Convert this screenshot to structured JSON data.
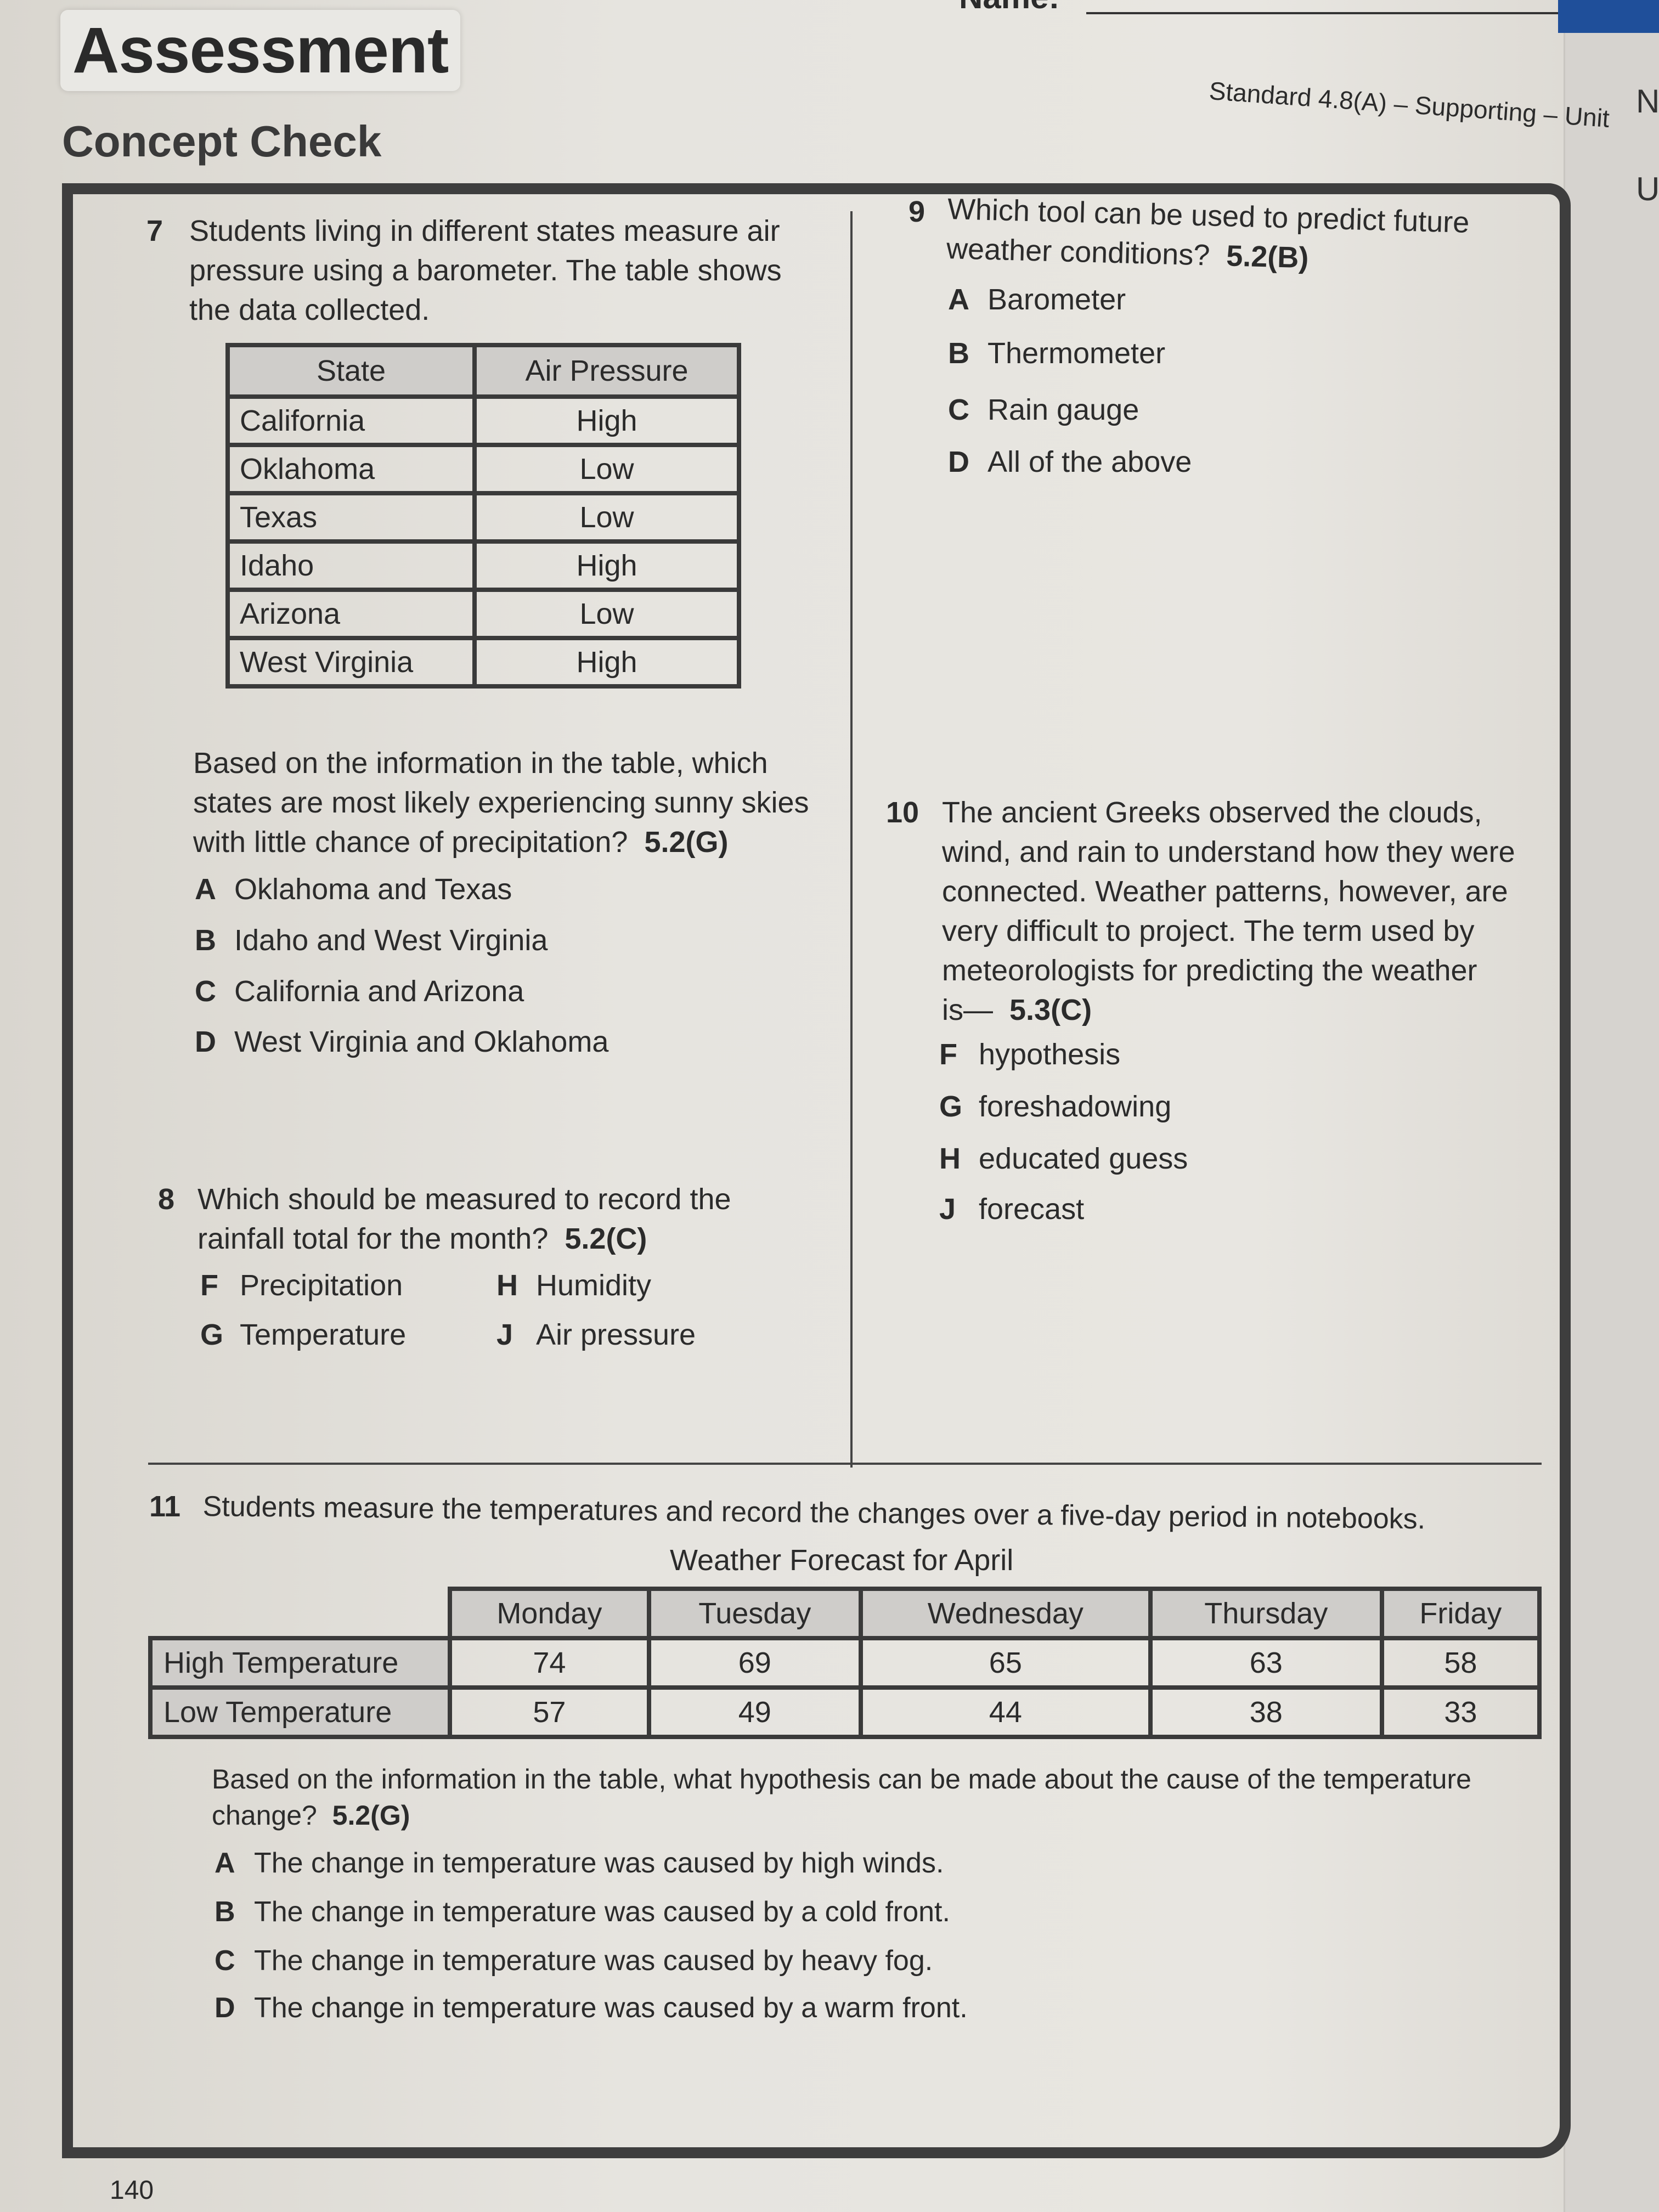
{
  "header": {
    "title": "Assessment",
    "subtitle": "Concept Check",
    "name_label": "Name:",
    "standard": "Standard 4.8(A) – Supporting – Unit"
  },
  "q7": {
    "number": "7",
    "lines": [
      "Students living in different states measure air",
      "pressure using a barometer. The table shows",
      "the data collected."
    ],
    "table": {
      "headers": [
        "State",
        "Air Pressure"
      ],
      "rows": [
        [
          "California",
          "High"
        ],
        [
          "Oklahoma",
          "Low"
        ],
        [
          "Texas",
          "Low"
        ],
        [
          "Idaho",
          "High"
        ],
        [
          "Arizona",
          "Low"
        ],
        [
          "West Virginia",
          "High"
        ]
      ]
    },
    "prompt": [
      "Based on the information in the table, which",
      "states are most likely experiencing sunny skies",
      "with little chance of precipitation?"
    ],
    "standard": "5.2(G)",
    "options": [
      {
        "letter": "A",
        "text": "Oklahoma and Texas"
      },
      {
        "letter": "B",
        "text": "Idaho and West Virginia"
      },
      {
        "letter": "C",
        "text": "California and Arizona"
      },
      {
        "letter": "D",
        "text": "West Virginia and Oklahoma"
      }
    ]
  },
  "q8": {
    "number": "8",
    "lines": [
      "Which should be measured to record the",
      "rainfall total for the month?"
    ],
    "standard": "5.2(C)",
    "options": [
      {
        "letter": "F",
        "text": "Precipitation"
      },
      {
        "letter": "H",
        "text": "Humidity"
      },
      {
        "letter": "G",
        "text": "Temperature"
      },
      {
        "letter": "J",
        "text": "Air pressure"
      }
    ]
  },
  "q9": {
    "number": "9",
    "lines": [
      "Which tool can be used to predict future",
      "weather conditions?"
    ],
    "standard": "5.2(B)",
    "options": [
      {
        "letter": "A",
        "text": "Barometer"
      },
      {
        "letter": "B",
        "text": "Thermometer"
      },
      {
        "letter": "C",
        "text": "Rain gauge"
      },
      {
        "letter": "D",
        "text": "All of the above"
      }
    ]
  },
  "q10": {
    "number": "10",
    "lines": [
      "The ancient Greeks observed the clouds,",
      "wind, and rain to understand how they were",
      "connected. Weather patterns, however, are",
      "very difficult to project. The term used by",
      "meteorologists for predicting the weather",
      "is—"
    ],
    "standard": "5.3(C)",
    "options": [
      {
        "letter": "F",
        "text": "hypothesis"
      },
      {
        "letter": "G",
        "text": "foreshadowing"
      },
      {
        "letter": "H",
        "text": "educated guess"
      },
      {
        "letter": "J",
        "text": "forecast"
      }
    ]
  },
  "q11": {
    "number": "11",
    "text": "Students measure the temperatures and record the changes over a five-day period in notebooks.",
    "table": {
      "title": "Weather Forecast for April",
      "days": [
        "Monday",
        "Tuesday",
        "Wednesday",
        "Thursday",
        "Friday"
      ],
      "rows": [
        {
          "label": "High Temperature",
          "values": [
            "74",
            "69",
            "65",
            "63",
            "58"
          ]
        },
        {
          "label": "Low Temperature",
          "values": [
            "57",
            "49",
            "44",
            "38",
            "33"
          ]
        }
      ]
    },
    "prompt": [
      "Based on the information in the table, what hypothesis can be made about the cause of the temperature",
      "change?"
    ],
    "standard": "5.2(G)",
    "options": [
      {
        "letter": "A",
        "text": "The change in temperature was caused by high winds."
      },
      {
        "letter": "B",
        "text": "The change in temperature was caused by a cold front."
      },
      {
        "letter": "C",
        "text": "The change in temperature was caused by heavy fog."
      },
      {
        "letter": "D",
        "text": "The change in temperature was caused by a warm front."
      }
    ]
  },
  "footer": {
    "page_number": "140"
  },
  "side_page": {
    "letters": [
      "N",
      "U"
    ]
  },
  "colors": {
    "paper": "#e6e4df",
    "ink": "#2b2b2b",
    "border": "#3e3e3e",
    "table_header": "#cfcdca",
    "binder_blue": "#1f4f9a"
  }
}
